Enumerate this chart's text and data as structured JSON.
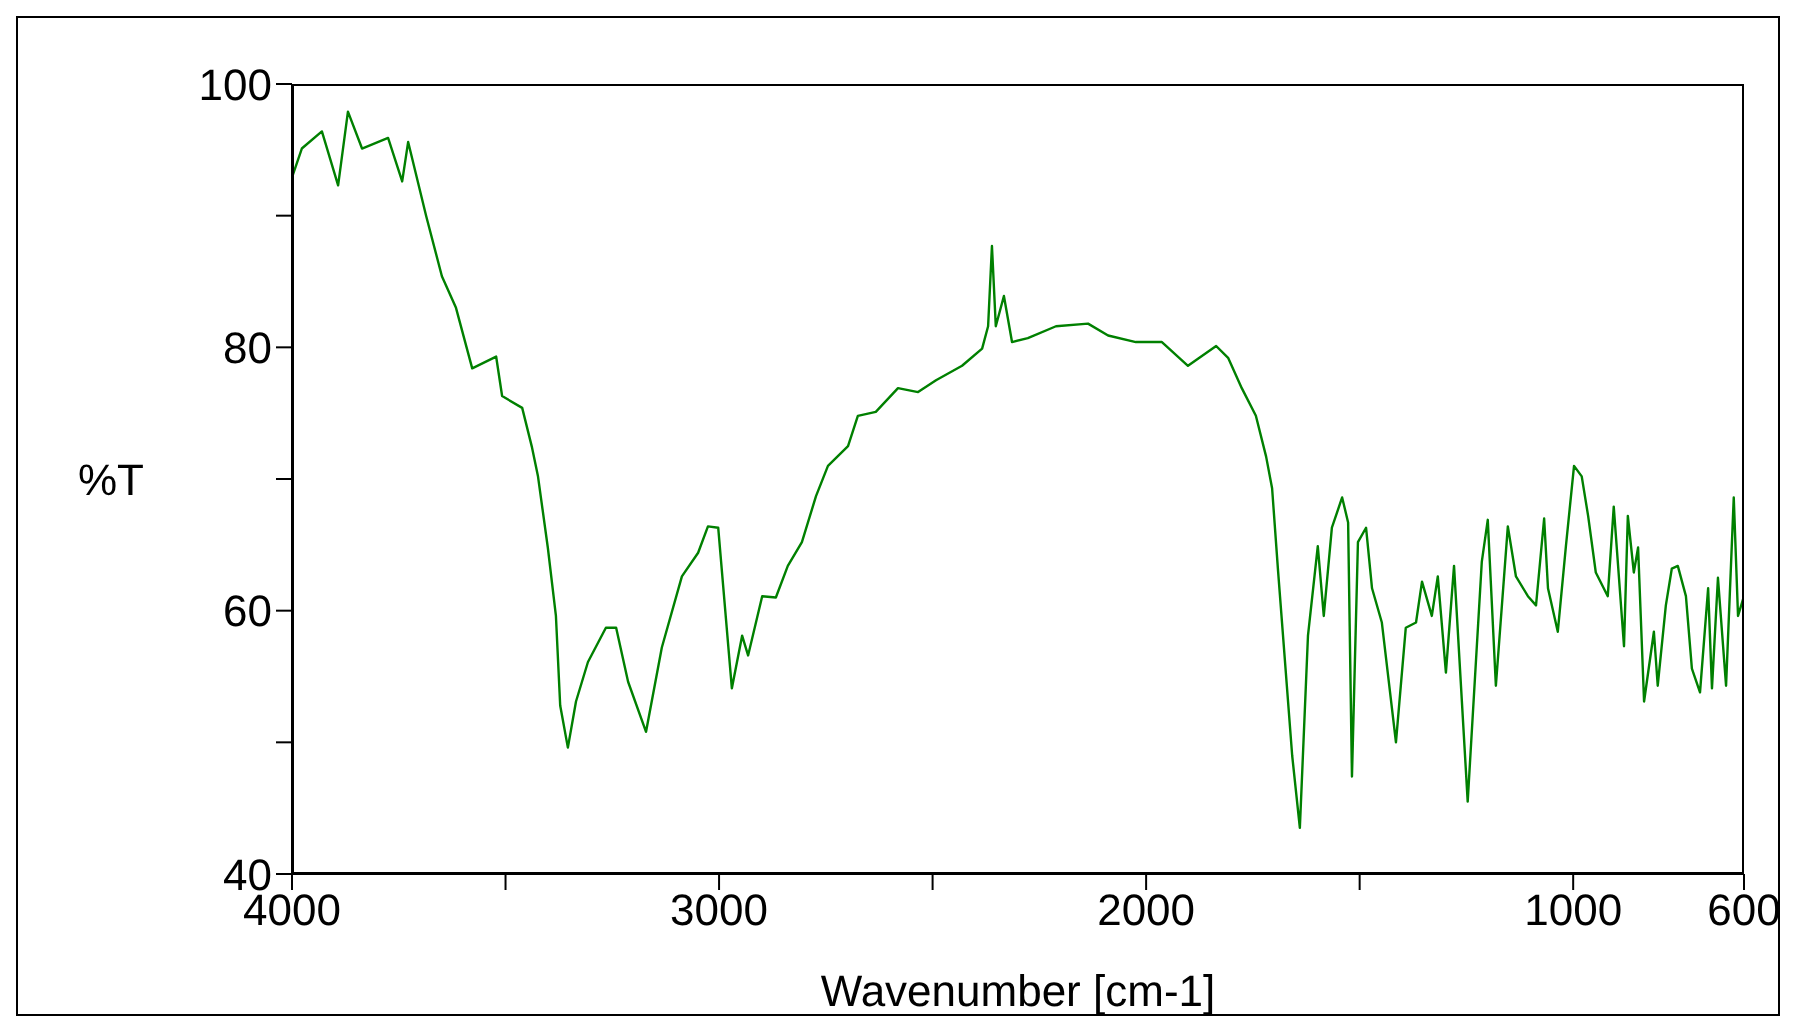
{
  "chart_data": {
    "type": "line",
    "xlabel": "Wavenumber [cm-1]",
    "ylabel": "%T",
    "xlim": [
      4000,
      600
    ],
    "ylim": [
      40,
      100
    ],
    "xticks": [
      4000,
      {
        "value": 3500,
        "label": null
      },
      3000,
      {
        "value": 2500,
        "label": null
      },
      2000,
      {
        "value": 1500,
        "label": null
      },
      1000,
      600
    ],
    "yticks": [
      40,
      {
        "value": 50,
        "label": null
      },
      60,
      {
        "value": 70,
        "label": null
      },
      80,
      {
        "value": 90,
        "label": null
      },
      100
    ],
    "grid": false,
    "legend": false,
    "marker": "none",
    "line_style": "solid",
    "series": [
      {
        "color": "#008000",
        "x": [
          4000,
          3977,
          3930,
          3892,
          3869,
          3836,
          3775,
          3742,
          3728,
          3686,
          3649,
          3616,
          3578,
          3522,
          3508,
          3461,
          3438,
          3424,
          3401,
          3382,
          3372,
          3354,
          3335,
          3307,
          3265,
          3241,
          3213,
          3171,
          3134,
          3087,
          3049,
          3026,
          3002,
          2970,
          2946,
          2932,
          2899,
          2867,
          2839,
          2806,
          2773,
          2745,
          2698,
          2675,
          2633,
          2581,
          2534,
          2492,
          2431,
          2384,
          2370,
          2361,
          2352,
          2333,
          2314,
          2277,
          2211,
          2136,
          2089,
          2024,
          1963,
          1902,
          1836,
          1808,
          1776,
          1743,
          1719,
          1705,
          1691,
          1658,
          1640,
          1621,
          1598,
          1584,
          1565,
          1541,
          1527,
          1518,
          1504,
          1485,
          1471,
          1448,
          1415,
          1392,
          1368,
          1354,
          1331,
          1317,
          1298,
          1279,
          1247,
          1214,
          1200,
          1181,
          1153,
          1134,
          1106,
          1087,
          1068,
          1059,
          1036,
          1017,
          998,
          980,
          965,
          947,
          919,
          905,
          881,
          872,
          858,
          848,
          834,
          811,
          802,
          783,
          769,
          755,
          736,
          722,
          703,
          684,
          675,
          661,
          642,
          624,
          614,
          600
        ],
        "values": [
          92.9,
          95.1,
          96.4,
          92.3,
          97.9,
          95.1,
          95.9,
          92.6,
          95.6,
          90.0,
          85.4,
          83.0,
          78.4,
          79.3,
          76.3,
          75.4,
          72.4,
          70.2,
          64.8,
          59.6,
          52.8,
          49.6,
          53.1,
          56.1,
          58.7,
          58.7,
          54.6,
          50.8,
          57.2,
          62.6,
          64.4,
          66.4,
          66.3,
          54.1,
          58.1,
          56.6,
          61.1,
          61.0,
          63.4,
          65.2,
          68.7,
          71.0,
          72.5,
          74.8,
          75.1,
          76.9,
          76.6,
          77.5,
          78.6,
          79.9,
          81.6,
          87.7,
          81.6,
          83.9,
          80.4,
          80.7,
          81.6,
          81.8,
          80.9,
          80.4,
          80.4,
          78.6,
          80.1,
          79.2,
          76.9,
          74.8,
          71.7,
          69.3,
          63.0,
          49.0,
          43.5,
          58.1,
          64.9,
          59.6,
          66.3,
          68.6,
          66.7,
          47.4,
          65.2,
          66.3,
          61.7,
          59.1,
          50.0,
          58.7,
          59.1,
          62.2,
          59.6,
          62.6,
          55.3,
          63.4,
          45.5,
          63.7,
          66.9,
          54.3,
          66.4,
          62.6,
          61.1,
          60.4,
          67.0,
          61.7,
          58.4,
          64.9,
          71.0,
          70.2,
          67.2,
          62.9,
          61.1,
          67.9,
          57.3,
          67.2,
          62.9,
          64.8,
          53.1,
          58.4,
          54.3,
          60.4,
          63.2,
          63.4,
          61.1,
          55.6,
          53.8,
          61.7,
          54.1,
          62.5,
          54.3,
          68.6,
          59.6,
          61.1
        ]
      }
    ]
  }
}
